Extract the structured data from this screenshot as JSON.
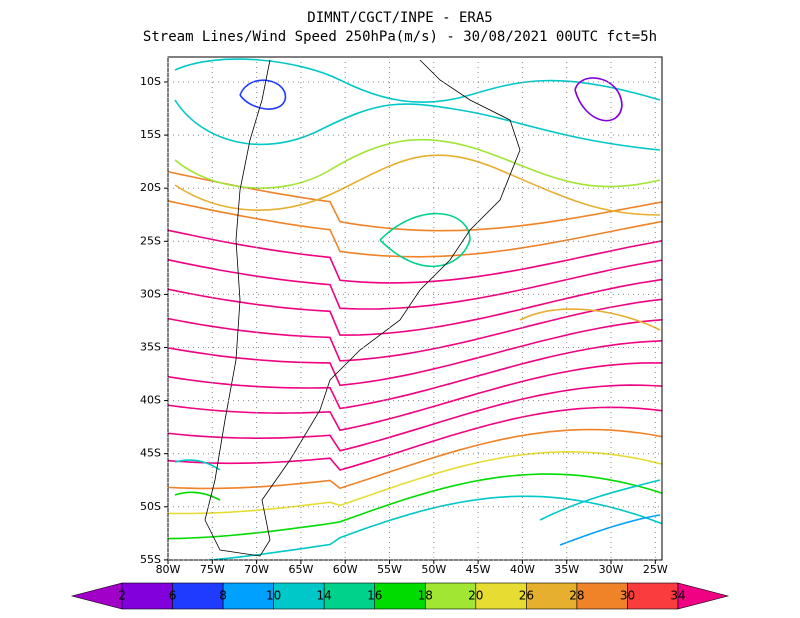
{
  "header": {
    "title_line_1": "DIMNT/CGCT/INPE  -  ERA5",
    "title_line_2": "Stream Lines/Wind Speed 250hPa(m/s)  -  30/08/2021 00UTC fct=5h"
  },
  "map": {
    "lat_labels": [
      "10S",
      "15S",
      "20S",
      "25S",
      "30S",
      "35S",
      "40S",
      "45S",
      "50S",
      "55S"
    ],
    "lon_labels": [
      "80W",
      "75W",
      "70W",
      "65W",
      "60W",
      "55W",
      "50W",
      "45W",
      "40W",
      "35W",
      "30W",
      "25W"
    ]
  },
  "colorbar": {
    "labels": [
      "2",
      "6",
      "8",
      "10",
      "14",
      "16",
      "18",
      "20",
      "26",
      "28",
      "30",
      "34"
    ],
    "colors": [
      "#a000c8",
      "#8200dc",
      "#1e3cff",
      "#00a0ff",
      "#00c8c8",
      "#00d28c",
      "#00dc00",
      "#a0e632",
      "#e6dc32",
      "#e6af2d",
      "#f08228",
      "#fa3c3c",
      "#f00082"
    ]
  }
}
